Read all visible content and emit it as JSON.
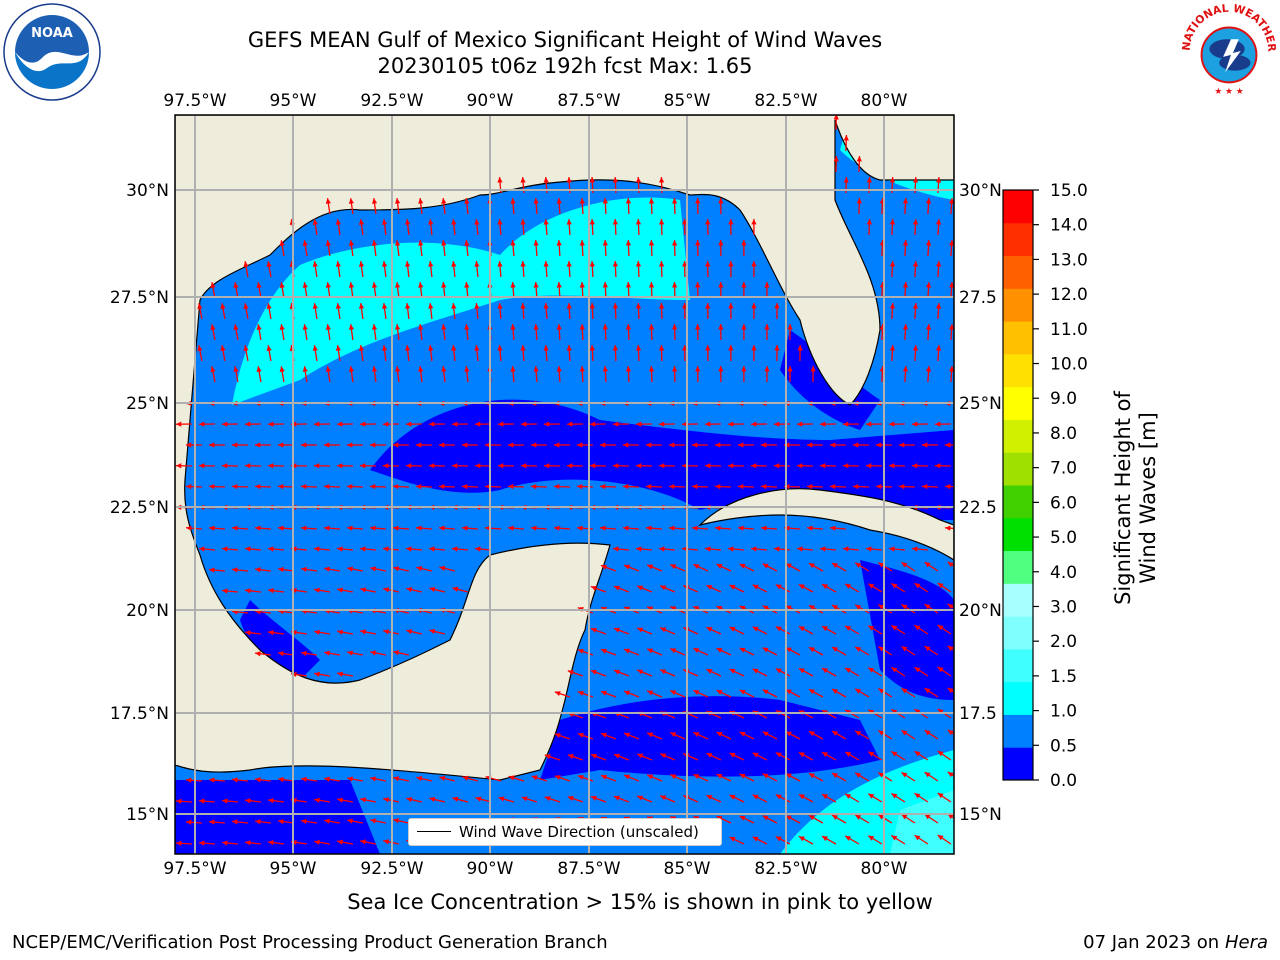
{
  "title": {
    "line1": "GEFS MEAN Gulf of Mexico Significant Height of Wind Waves",
    "line2": "20230105 t06z 192h fcst   Max: 1.65"
  },
  "map": {
    "lon_labels": [
      "97.5°W",
      "95°W",
      "92.5°W",
      "90°W",
      "87.5°W",
      "85°W",
      "82.5°W",
      "80°W"
    ],
    "lat_labels_left": [
      "30°N",
      "27.5°N",
      "25°N",
      "22.5°N",
      "20°N",
      "17.5°N",
      "15°N"
    ],
    "lat_labels_right": [
      "30°N",
      "27.5",
      "25°N",
      "22.5",
      "20°N",
      "17.5",
      "15°N"
    ],
    "legend_label": "Wind Wave Direction (unscaled)",
    "colors": {
      "land": "#eeeddc",
      "arrow": "#ff0000",
      "grid": "#b0b0b0"
    }
  },
  "colorbar": {
    "label": "Significant Height of Wind Waves [m]",
    "ticks": [
      "15.0",
      "14.0",
      "13.0",
      "12.0",
      "11.0",
      "10.0",
      "9.0",
      "8.0",
      "7.0",
      "6.0",
      "5.0",
      "4.0",
      "3.0",
      "2.0",
      "1.5",
      "1.0",
      "0.5",
      "0.0"
    ],
    "colors": [
      "#0000ff",
      "#0080ff",
      "#00ffff",
      "#40ffff",
      "#80ffff",
      "#a8ffff",
      "#50ff80",
      "#00e000",
      "#40d000",
      "#a0e000",
      "#d0f000",
      "#ffff00",
      "#ffe000",
      "#ffc000",
      "#ff9000",
      "#ff6000",
      "#ff3000",
      "#ff0000"
    ]
  },
  "logos": {
    "left": "NOAA",
    "right_text": "NATIONAL WEATHER SERVICE"
  },
  "caption": "Sea Ice Concentration > 15% is shown in pink to yellow",
  "footer": {
    "left": "NCEP/EMC/Verification Post Processing Product Generation Branch",
    "right_date": "07 Jan 2023 on ",
    "right_host": "Hera"
  }
}
